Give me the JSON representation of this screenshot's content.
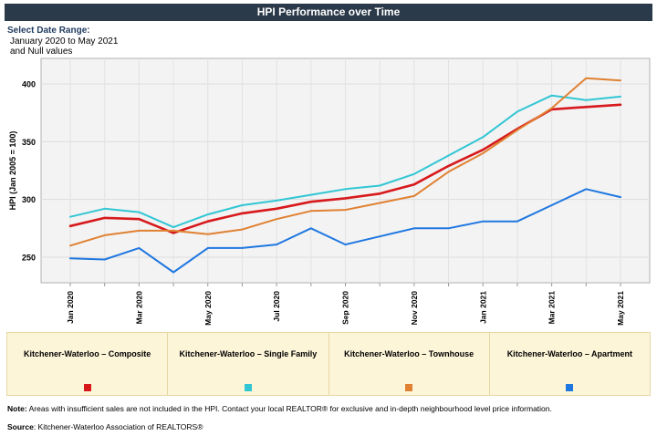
{
  "header": {
    "title": "HPI Performance over Time"
  },
  "date_range": {
    "label": "Select Date Range:",
    "line1": "January 2020 to May 2021",
    "line2": "and Null values"
  },
  "footer": {
    "note_label": "Note:",
    "note_text": " Areas with insufficient sales are not included in the HPI. Contact your local REALTOR® for exclusive and in-depth neighbourhood level price information.",
    "source_label": "Source",
    "source_text": ": Kitchener-Waterloo Association of REALTORS®"
  },
  "chart_data": {
    "type": "line",
    "title": "",
    "ylabel": "HPI (Jan 2005 = 100)",
    "xlabel": "",
    "ylim": [
      225,
      415
    ],
    "yticks": [
      250,
      300,
      350,
      400
    ],
    "grid": true,
    "legend_placement": "bottom",
    "x": [
      "Jan 2020",
      "Feb 2020",
      "Mar 2020",
      "Apr 2020",
      "May 2020",
      "Jun 2020",
      "Jul 2020",
      "Aug 2020",
      "Sep 2020",
      "Oct 2020",
      "Nov 2020",
      "Dec 2020",
      "Jan 2021",
      "Feb 2021",
      "Mar 2021",
      "Apr 2021",
      "May 2021"
    ],
    "tick_labels": [
      "Jan 2020",
      "",
      "Mar 2020",
      "",
      "May 2020",
      "",
      "Jul 2020",
      "",
      "Sep 2020",
      "",
      "Nov 2020",
      "",
      "Jan 2021",
      "",
      "Mar 2021",
      "",
      "May 2021"
    ],
    "series": [
      {
        "name": "Kitchener-Waterloo – Composite",
        "color": "#d7191c",
        "values": [
          277,
          284,
          283,
          271,
          281,
          288,
          292,
          298,
          301,
          305,
          313,
          329,
          343,
          361,
          378,
          380,
          382
        ]
      },
      {
        "name": "Kitchener-Waterloo – Single Family",
        "color": "#31c6d4",
        "values": [
          285,
          292,
          289,
          276,
          287,
          295,
          299,
          304,
          309,
          312,
          322,
          338,
          354,
          376,
          390,
          386,
          389
        ]
      },
      {
        "name": "Kitchener-Waterloo – Townhouse",
        "color": "#e08132",
        "values": [
          260,
          269,
          273,
          273,
          270,
          274,
          283,
          290,
          291,
          297,
          303,
          324,
          340,
          360,
          379,
          405,
          403
        ]
      },
      {
        "name": "Kitchener-Waterloo – Apartment",
        "color": "#1f77e0",
        "values": [
          249,
          248,
          258,
          237,
          258,
          258,
          261,
          275,
          261,
          268,
          275,
          275,
          281,
          281,
          295,
          309,
          302
        ]
      }
    ]
  }
}
